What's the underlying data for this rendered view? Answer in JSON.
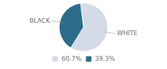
{
  "chart_data": {
    "type": "pie",
    "categories": [
      "WHITE",
      "BLACK"
    ],
    "values": [
      60.7,
      39.3
    ],
    "value_labels": [
      "60.7%",
      "39.3%"
    ],
    "colors": [
      "#d4dbe6",
      "#2d6b8a"
    ],
    "legend": "bottom"
  }
}
